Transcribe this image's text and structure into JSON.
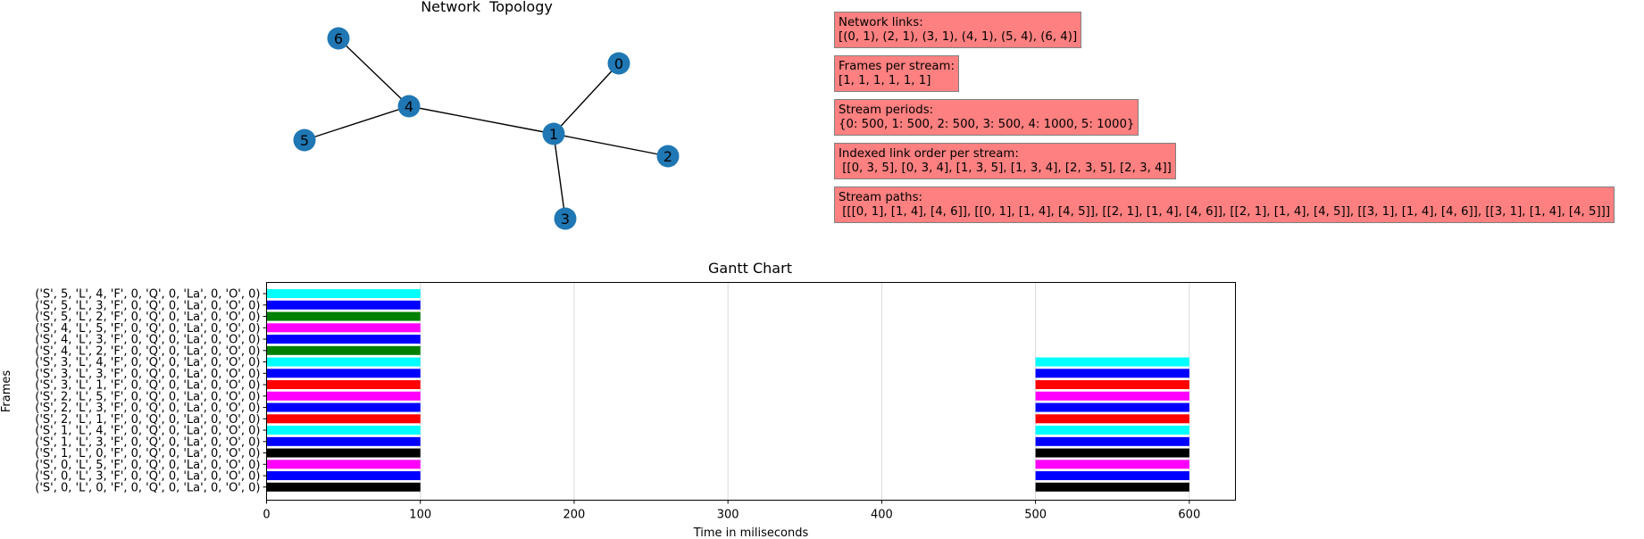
{
  "topology": {
    "title": "Network  Topology",
    "node_color": "#1f77b4",
    "nodes": [
      "0",
      "1",
      "2",
      "3",
      "4",
      "5",
      "6"
    ],
    "edges": [
      [
        0,
        1
      ],
      [
        2,
        1
      ],
      [
        3,
        1
      ],
      [
        4,
        1
      ],
      [
        5,
        4
      ],
      [
        6,
        4
      ]
    ]
  },
  "info_boxes": [
    {
      "label": "Network links:",
      "value": "[(0, 1), (2, 1), (3, 1), (4, 1), (5, 4), (6, 4)]"
    },
    {
      "label": "Frames per stream:",
      "value": "[1, 1, 1, 1, 1, 1]"
    },
    {
      "label": "Stream periods:",
      "value": "{0: 500, 1: 500, 2: 500, 3: 500, 4: 1000, 5: 1000}"
    },
    {
      "label": "Indexed link order per stream:",
      "value": " [[0, 3, 5], [0, 3, 4], [1, 3, 5], [1, 3, 4], [2, 3, 5], [2, 3, 4]]"
    },
    {
      "label": "Stream paths:",
      "value": " [[[0, 1], [1, 4], [4, 6]], [[0, 1], [1, 4], [4, 5]], [[2, 1], [1, 4], [4, 6]], [[2, 1], [1, 4], [4, 5]], [[3, 1], [1, 4], [4, 6]], [[3, 1], [1, 4], [4, 5]]]"
    }
  ],
  "chart_data": {
    "type": "bar",
    "orientation": "horizontal",
    "title": "Gantt Chart",
    "xlabel": "Time in miliseconds",
    "ylabel": "Frames",
    "xlim": [
      0,
      630
    ],
    "xticks": [
      0,
      100,
      200,
      300,
      400,
      500,
      600
    ],
    "grid": "vertical",
    "categories": [
      "('S', 0, 'L', 0, 'F', 0, 'Q', 0, 'La', 0, 'O', 0)",
      "('S', 0, 'L', 3, 'F', 0, 'Q', 0, 'La', 0, 'O', 0)",
      "('S', 0, 'L', 5, 'F', 0, 'Q', 0, 'La', 0, 'O', 0)",
      "('S', 1, 'L', 0, 'F', 0, 'Q', 0, 'La', 0, 'O', 0)",
      "('S', 1, 'L', 3, 'F', 0, 'Q', 0, 'La', 0, 'O', 0)",
      "('S', 1, 'L', 4, 'F', 0, 'Q', 0, 'La', 0, 'O', 0)",
      "('S', 2, 'L', 1, 'F', 0, 'Q', 0, 'La', 0, 'O', 0)",
      "('S', 2, 'L', 3, 'F', 0, 'Q', 0, 'La', 0, 'O', 0)",
      "('S', 2, 'L', 5, 'F', 0, 'Q', 0, 'La', 0, 'O', 0)",
      "('S', 3, 'L', 1, 'F', 0, 'Q', 0, 'La', 0, 'O', 0)",
      "('S', 3, 'L', 3, 'F', 0, 'Q', 0, 'La', 0, 'O', 0)",
      "('S', 3, 'L', 4, 'F', 0, 'Q', 0, 'La', 0, 'O', 0)",
      "('S', 4, 'L', 2, 'F', 0, 'Q', 0, 'La', 0, 'O', 0)",
      "('S', 4, 'L', 3, 'F', 0, 'Q', 0, 'La', 0, 'O', 0)",
      "('S', 4, 'L', 5, 'F', 0, 'Q', 0, 'La', 0, 'O', 0)",
      "('S', 5, 'L', 2, 'F', 0, 'Q', 0, 'La', 0, 'O', 0)",
      "('S', 5, 'L', 3, 'F', 0, 'Q', 0, 'La', 0, 'O', 0)",
      "('S', 5, 'L', 4, 'F', 0, 'Q', 0, 'La', 0, 'O', 0)"
    ],
    "bars": [
      {
        "row": 0,
        "start": 0,
        "duration": 100,
        "color": "#000000"
      },
      {
        "row": 0,
        "start": 500,
        "duration": 100,
        "color": "#000000"
      },
      {
        "row": 1,
        "start": 0,
        "duration": 100,
        "color": "#0000ff"
      },
      {
        "row": 1,
        "start": 500,
        "duration": 100,
        "color": "#0000ff"
      },
      {
        "row": 2,
        "start": 0,
        "duration": 100,
        "color": "#ff00ff"
      },
      {
        "row": 2,
        "start": 500,
        "duration": 100,
        "color": "#ff00ff"
      },
      {
        "row": 3,
        "start": 0,
        "duration": 100,
        "color": "#000000"
      },
      {
        "row": 3,
        "start": 500,
        "duration": 100,
        "color": "#000000"
      },
      {
        "row": 4,
        "start": 0,
        "duration": 100,
        "color": "#0000ff"
      },
      {
        "row": 4,
        "start": 500,
        "duration": 100,
        "color": "#0000ff"
      },
      {
        "row": 5,
        "start": 0,
        "duration": 100,
        "color": "#00ffff"
      },
      {
        "row": 5,
        "start": 500,
        "duration": 100,
        "color": "#00ffff"
      },
      {
        "row": 6,
        "start": 0,
        "duration": 100,
        "color": "#ff0000"
      },
      {
        "row": 6,
        "start": 500,
        "duration": 100,
        "color": "#ff0000"
      },
      {
        "row": 7,
        "start": 0,
        "duration": 100,
        "color": "#0000ff"
      },
      {
        "row": 7,
        "start": 500,
        "duration": 100,
        "color": "#0000ff"
      },
      {
        "row": 8,
        "start": 0,
        "duration": 100,
        "color": "#ff00ff"
      },
      {
        "row": 8,
        "start": 500,
        "duration": 100,
        "color": "#ff00ff"
      },
      {
        "row": 9,
        "start": 0,
        "duration": 100,
        "color": "#ff0000"
      },
      {
        "row": 9,
        "start": 500,
        "duration": 100,
        "color": "#ff0000"
      },
      {
        "row": 10,
        "start": 0,
        "duration": 100,
        "color": "#0000ff"
      },
      {
        "row": 10,
        "start": 500,
        "duration": 100,
        "color": "#0000ff"
      },
      {
        "row": 11,
        "start": 0,
        "duration": 100,
        "color": "#00ffff"
      },
      {
        "row": 11,
        "start": 500,
        "duration": 100,
        "color": "#00ffff"
      },
      {
        "row": 12,
        "start": 0,
        "duration": 100,
        "color": "#008000"
      },
      {
        "row": 13,
        "start": 0,
        "duration": 100,
        "color": "#0000ff"
      },
      {
        "row": 14,
        "start": 0,
        "duration": 100,
        "color": "#ff00ff"
      },
      {
        "row": 15,
        "start": 0,
        "duration": 100,
        "color": "#008000"
      },
      {
        "row": 16,
        "start": 0,
        "duration": 100,
        "color": "#0000ff"
      },
      {
        "row": 17,
        "start": 0,
        "duration": 100,
        "color": "#00ffff"
      }
    ]
  }
}
